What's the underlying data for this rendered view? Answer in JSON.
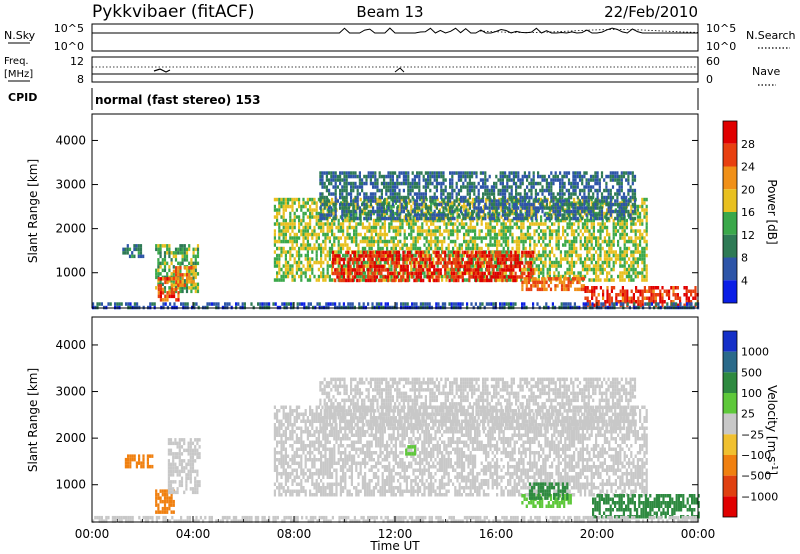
{
  "header": {
    "station": "Pykkvibaer (fitACF)",
    "beam": "Beam 13",
    "date": "22/Feb/2010"
  },
  "chart_data": [
    {
      "type": "line",
      "panel": "noise",
      "left_label": "N.Sky",
      "right_label": "N.Search",
      "left_ticks": [
        "10^5",
        "10^0"
      ],
      "right_ticks": [
        "10^5",
        "10^0"
      ],
      "description": "sky noise near 10^5 with spikes, search noise dotted"
    },
    {
      "type": "line",
      "panel": "freq_nave",
      "left_label": "Freq. [MHz]",
      "right_label": "Nave",
      "left_ticks": [
        "12",
        "8"
      ],
      "right_ticks": [
        "60",
        "0"
      ]
    },
    {
      "type": "text",
      "panel": "cpid",
      "label": "CPID",
      "value": "normal (fast stereo) 153"
    },
    {
      "type": "heatmap",
      "panel": "power",
      "ylabel": "Slant Range [km]",
      "yticks": [
        1000,
        2000,
        3000,
        4000
      ],
      "ylim": [
        200,
        4600
      ],
      "colorbar_label": "Power [dB]",
      "colorbar_ticks": [
        4,
        8,
        12,
        16,
        20,
        24,
        28
      ],
      "colorbar_range": [
        0,
        32
      ],
      "colors": [
        "#0a1ee6",
        "#2d55a8",
        "#2e7a55",
        "#3aa84a",
        "#e8c020",
        "#f09018",
        "#e84010",
        "#e00000"
      ],
      "echo_regions": [
        {
          "t_start": 1.2,
          "t_end": 2.0,
          "range_low": 1350,
          "range_high": 1650,
          "power": 10
        },
        {
          "t_start": 2.5,
          "t_end": 4.2,
          "range_low": 600,
          "range_high": 1650,
          "power": 14
        },
        {
          "t_start": 2.6,
          "t_end": 3.4,
          "range_low": 400,
          "range_high": 900,
          "power": 26
        },
        {
          "t_start": 3.2,
          "t_end": 4.0,
          "range_low": 750,
          "range_high": 1150,
          "power": 22
        },
        {
          "t_start": 7.2,
          "t_end": 22.0,
          "range_low": 800,
          "range_high": 2700,
          "power": 16
        },
        {
          "t_start": 9.5,
          "t_end": 17.5,
          "range_low": 850,
          "range_high": 1500,
          "power": 28
        },
        {
          "t_start": 9.0,
          "t_end": 21.5,
          "range_low": 2200,
          "range_high": 3300,
          "power": 8
        },
        {
          "t_start": 17.0,
          "t_end": 19.5,
          "range_low": 650,
          "range_high": 900,
          "power": 24
        },
        {
          "t_start": 19.5,
          "t_end": 24.0,
          "range_low": 300,
          "range_high": 700,
          "power": 27
        },
        {
          "t_start": 0.0,
          "t_end": 24.0,
          "range_low": 200,
          "range_high": 330,
          "power": 6
        }
      ]
    },
    {
      "type": "heatmap",
      "panel": "velocity",
      "xlabel": "Time UT",
      "ylabel": "Slant Range [km]",
      "xticks": [
        "00:00",
        "04:00",
        "08:00",
        "12:00",
        "16:00",
        "20:00",
        "00:00"
      ],
      "xlim_hours": [
        0,
        24
      ],
      "yticks": [
        1000,
        2000,
        3000,
        4000
      ],
      "ylim": [
        200,
        4600
      ],
      "colorbar_label": "Velocity [m s⁻¹]",
      "colorbar_ticks": [
        "1000",
        "500",
        "100",
        "25",
        "−25",
        "−100",
        "−500",
        "−1000"
      ],
      "colors": [
        "#1530c8",
        "#2a6a8a",
        "#2e8a40",
        "#5ec83a",
        "#c8c8c8",
        "#f0c030",
        "#f08010",
        "#e04010",
        "#e00000"
      ],
      "ground_scatter_color": "#c0c0c0",
      "echo_regions": [
        {
          "t_start": 1.3,
          "t_end": 2.4,
          "range_low": 1350,
          "range_high": 1650,
          "velocity": -300
        },
        {
          "t_start": 2.5,
          "t_end": 3.2,
          "range_low": 400,
          "range_high": 900,
          "velocity": -300
        },
        {
          "t_start": 3.0,
          "t_end": 4.3,
          "range_low": 800,
          "range_high": 2000,
          "velocity": 0
        },
        {
          "t_start": 7.2,
          "t_end": 22.0,
          "range_low": 800,
          "range_high": 2700,
          "velocity": 0
        },
        {
          "t_start": 9.0,
          "t_end": 21.5,
          "range_low": 2200,
          "range_high": 3300,
          "velocity": 0
        },
        {
          "t_start": 12.4,
          "t_end": 12.8,
          "range_low": 1650,
          "range_high": 1850,
          "velocity": 80
        },
        {
          "t_start": 17.0,
          "t_end": 19.0,
          "range_low": 550,
          "range_high": 800,
          "velocity": 80
        },
        {
          "t_start": 17.3,
          "t_end": 18.8,
          "range_low": 700,
          "range_high": 1050,
          "velocity": 300
        },
        {
          "t_start": 19.8,
          "t_end": 24.0,
          "range_low": 300,
          "range_high": 800,
          "velocity": 300
        },
        {
          "t_start": 0.0,
          "t_end": 24.0,
          "range_low": 200,
          "range_high": 330,
          "velocity": 0
        }
      ]
    }
  ]
}
